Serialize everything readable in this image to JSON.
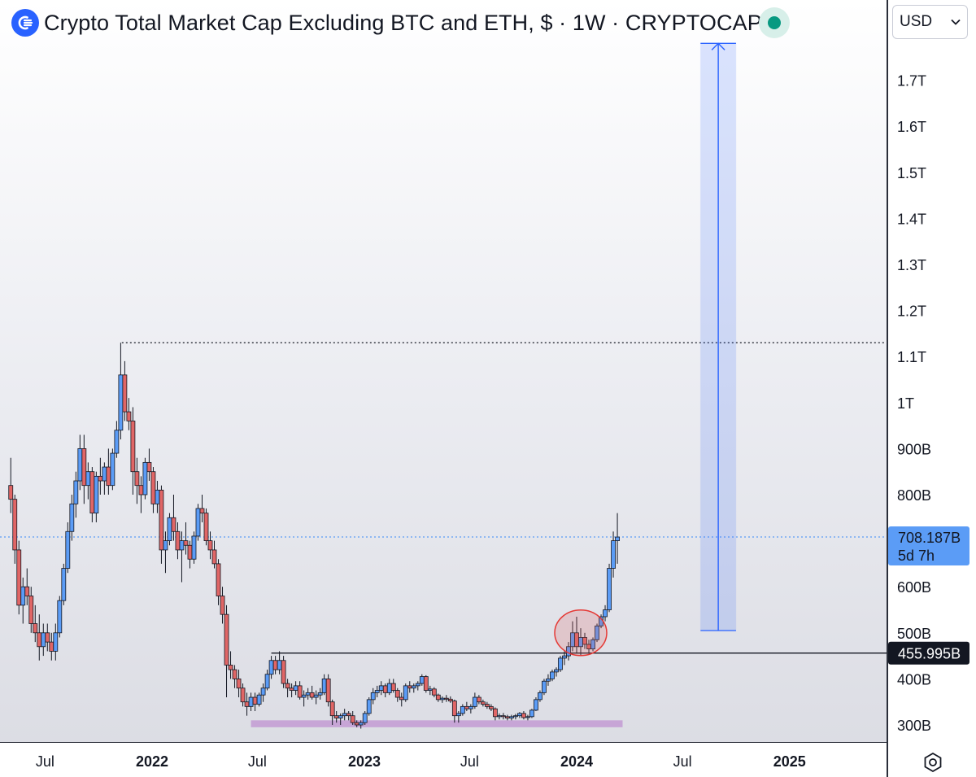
{
  "header": {
    "title": "Crypto Total Market Cap Excluding BTC and ETH, $ · 1W · CRYPTOCAP",
    "logo_icon": "crypto-index-logo-icon",
    "status_icon": "market-status-dot-icon",
    "status_color": "#089981"
  },
  "currency": {
    "selected": "USD",
    "icon": "chevron-down-icon"
  },
  "price_axis": {
    "ticks": [
      "1.7T",
      "1.6T",
      "1.5T",
      "1.4T",
      "1.3T",
      "1.2T",
      "1.1T",
      "1T",
      "900B",
      "800B",
      "600B",
      "500B",
      "400B",
      "300B"
    ],
    "last_price_label": "708.187B",
    "countdown_label": "5d 7h",
    "last_price_color": "#5b9cf6",
    "level_label": "455.995B"
  },
  "time_axis": {
    "ticks": [
      "Jul",
      "2022",
      "Jul",
      "2023",
      "Jul",
      "2024",
      "Jul",
      "2025"
    ],
    "bold_ticks": [
      "2022",
      "2023",
      "2024",
      "2025"
    ]
  },
  "settings_icon": "chart-settings-icon",
  "colors": {
    "bull": "#5b9cf6",
    "bear": "#e06666",
    "candle_border": "#131722",
    "support_zone": "#c39bd3",
    "target_box": "#2962ff"
  },
  "chart_data": {
    "type": "candlestick",
    "title": "Crypto Total Market Cap Excluding BTC and ETH, $ · 1W · CRYPTOCAP",
    "interval": "1W",
    "x_range": [
      "2021-05-01",
      "2025-05-01"
    ],
    "ylim": [
      280,
      1800
    ],
    "y_unit": "B USD",
    "grid": false,
    "all_time_high": 1130,
    "last_price": 708.187,
    "resistance_level": 455.995,
    "support_zone": [
      295,
      310
    ],
    "highlight_circle": {
      "date": "2024-01-08",
      "value": 500
    },
    "target_projection": {
      "date_start": "2024-08-01",
      "date_end": "2024-10-01",
      "from": 505,
      "to": 1780
    },
    "series": [
      {
        "ohlc": [
          [
            "2021-05-03",
            820,
            880,
            760,
            790
          ],
          [
            "2021-05-10",
            790,
            800,
            650,
            680
          ],
          [
            "2021-05-17",
            680,
            700,
            540,
            560
          ],
          [
            "2021-05-24",
            560,
            620,
            520,
            600
          ],
          [
            "2021-05-31",
            600,
            640,
            560,
            580
          ],
          [
            "2021-06-07",
            580,
            600,
            500,
            520
          ],
          [
            "2021-06-14",
            520,
            560,
            480,
            500
          ],
          [
            "2021-06-21",
            500,
            540,
            440,
            470
          ],
          [
            "2021-06-28",
            470,
            520,
            450,
            500
          ],
          [
            "2021-07-05",
            500,
            520,
            460,
            480
          ],
          [
            "2021-07-12",
            480,
            500,
            440,
            460
          ],
          [
            "2021-07-19",
            460,
            520,
            440,
            500
          ],
          [
            "2021-07-26",
            500,
            580,
            490,
            570
          ],
          [
            "2021-08-02",
            570,
            650,
            560,
            640
          ],
          [
            "2021-08-09",
            640,
            740,
            630,
            720
          ],
          [
            "2021-08-16",
            720,
            800,
            700,
            780
          ],
          [
            "2021-08-23",
            780,
            850,
            750,
            830
          ],
          [
            "2021-08-30",
            830,
            930,
            810,
            900
          ],
          [
            "2021-09-06",
            900,
            930,
            780,
            820
          ],
          [
            "2021-09-13",
            820,
            870,
            790,
            850
          ],
          [
            "2021-09-20",
            850,
            860,
            740,
            760
          ],
          [
            "2021-09-27",
            760,
            850,
            740,
            840
          ],
          [
            "2021-10-04",
            840,
            880,
            800,
            830
          ],
          [
            "2021-10-11",
            830,
            870,
            800,
            860
          ],
          [
            "2021-10-18",
            860,
            900,
            800,
            820
          ],
          [
            "2021-10-25",
            820,
            900,
            810,
            890
          ],
          [
            "2021-11-01",
            890,
            960,
            880,
            940
          ],
          [
            "2021-11-08",
            940,
            1130,
            920,
            1060
          ],
          [
            "2021-11-15",
            1060,
            1090,
            960,
            980
          ],
          [
            "2021-11-22",
            980,
            1010,
            940,
            960
          ],
          [
            "2021-11-29",
            960,
            990,
            800,
            850
          ],
          [
            "2021-12-06",
            850,
            880,
            780,
            820
          ],
          [
            "2021-12-13",
            820,
            840,
            760,
            800
          ],
          [
            "2021-12-20",
            800,
            880,
            790,
            870
          ],
          [
            "2021-12-27",
            870,
            900,
            830,
            850
          ],
          [
            "2022-01-03",
            850,
            860,
            760,
            780
          ],
          [
            "2022-01-10",
            780,
            830,
            760,
            810
          ],
          [
            "2022-01-17",
            810,
            820,
            650,
            680
          ],
          [
            "2022-01-24",
            680,
            720,
            630,
            700
          ],
          [
            "2022-01-31",
            700,
            760,
            690,
            750
          ],
          [
            "2022-02-07",
            750,
            800,
            700,
            720
          ],
          [
            "2022-02-14",
            720,
            740,
            660,
            680
          ],
          [
            "2022-02-21",
            680,
            720,
            610,
            700
          ],
          [
            "2022-02-28",
            700,
            740,
            670,
            690
          ],
          [
            "2022-03-07",
            690,
            700,
            640,
            660
          ],
          [
            "2022-03-14",
            660,
            720,
            650,
            710
          ],
          [
            "2022-03-21",
            710,
            780,
            700,
            770
          ],
          [
            "2022-03-28",
            770,
            800,
            740,
            760
          ],
          [
            "2022-04-04",
            760,
            770,
            690,
            700
          ],
          [
            "2022-04-11",
            700,
            720,
            660,
            680
          ],
          [
            "2022-04-18",
            680,
            700,
            640,
            650
          ],
          [
            "2022-04-25",
            650,
            660,
            560,
            580
          ],
          [
            "2022-05-02",
            580,
            600,
            520,
            540
          ],
          [
            "2022-05-09",
            540,
            560,
            360,
            430
          ],
          [
            "2022-05-16",
            430,
            460,
            400,
            420
          ],
          [
            "2022-05-23",
            420,
            430,
            380,
            400
          ],
          [
            "2022-05-30",
            400,
            420,
            360,
            380
          ],
          [
            "2022-06-06",
            380,
            390,
            340,
            350
          ],
          [
            "2022-06-13",
            350,
            370,
            320,
            340
          ],
          [
            "2022-06-20",
            340,
            370,
            330,
            360
          ],
          [
            "2022-06-27",
            360,
            370,
            330,
            345
          ],
          [
            "2022-07-04",
            345,
            370,
            340,
            365
          ],
          [
            "2022-07-11",
            365,
            390,
            350,
            380
          ],
          [
            "2022-07-18",
            380,
            420,
            375,
            410
          ],
          [
            "2022-07-25",
            410,
            450,
            400,
            440
          ],
          [
            "2022-08-01",
            440,
            450,
            410,
            420
          ],
          [
            "2022-08-08",
            420,
            460,
            410,
            440
          ],
          [
            "2022-08-15",
            440,
            450,
            380,
            390
          ],
          [
            "2022-08-22",
            390,
            400,
            360,
            380
          ],
          [
            "2022-08-29",
            380,
            390,
            360,
            375
          ],
          [
            "2022-09-05",
            375,
            395,
            365,
            385
          ],
          [
            "2022-09-12",
            385,
            395,
            355,
            360
          ],
          [
            "2022-09-19",
            360,
            375,
            340,
            365
          ],
          [
            "2022-09-26",
            365,
            380,
            355,
            370
          ],
          [
            "2022-10-03",
            370,
            385,
            355,
            360
          ],
          [
            "2022-10-10",
            360,
            375,
            345,
            365
          ],
          [
            "2022-10-17",
            365,
            380,
            355,
            370
          ],
          [
            "2022-10-24",
            370,
            410,
            365,
            400
          ],
          [
            "2022-10-31",
            400,
            410,
            340,
            350
          ],
          [
            "2022-11-07",
            350,
            355,
            300,
            320
          ],
          [
            "2022-11-14",
            320,
            330,
            305,
            315
          ],
          [
            "2022-11-21",
            315,
            325,
            300,
            320
          ],
          [
            "2022-11-28",
            320,
            335,
            310,
            325
          ],
          [
            "2022-12-05",
            325,
            330,
            310,
            320
          ],
          [
            "2022-12-12",
            320,
            330,
            300,
            305
          ],
          [
            "2022-12-19",
            305,
            310,
            295,
            300
          ],
          [
            "2022-12-26",
            300,
            310,
            292,
            305
          ],
          [
            "2023-01-02",
            305,
            330,
            300,
            325
          ],
          [
            "2023-01-09",
            325,
            360,
            320,
            355
          ],
          [
            "2023-01-16",
            355,
            380,
            345,
            370
          ],
          [
            "2023-01-23",
            370,
            385,
            360,
            375
          ],
          [
            "2023-01-30",
            375,
            395,
            365,
            385
          ],
          [
            "2023-02-06",
            385,
            390,
            360,
            370
          ],
          [
            "2023-02-13",
            370,
            400,
            365,
            390
          ],
          [
            "2023-02-20",
            390,
            400,
            370,
            375
          ],
          [
            "2023-02-27",
            375,
            380,
            350,
            360
          ],
          [
            "2023-03-06",
            360,
            370,
            340,
            355
          ],
          [
            "2023-03-13",
            355,
            390,
            350,
            385
          ],
          [
            "2023-03-20",
            385,
            395,
            370,
            380
          ],
          [
            "2023-03-27",
            380,
            390,
            370,
            385
          ],
          [
            "2023-04-03",
            385,
            395,
            375,
            390
          ],
          [
            "2023-04-10",
            390,
            410,
            385,
            405
          ],
          [
            "2023-04-17",
            405,
            408,
            370,
            375
          ],
          [
            "2023-04-24",
            375,
            385,
            365,
            378
          ],
          [
            "2023-05-01",
            378,
            382,
            360,
            365
          ],
          [
            "2023-05-08",
            365,
            368,
            350,
            355
          ],
          [
            "2023-05-15",
            355,
            362,
            348,
            358
          ],
          [
            "2023-05-22",
            358,
            365,
            350,
            356
          ],
          [
            "2023-05-29",
            356,
            362,
            348,
            352
          ],
          [
            "2023-06-05",
            352,
            355,
            305,
            320
          ],
          [
            "2023-06-12",
            320,
            330,
            305,
            325
          ],
          [
            "2023-06-19",
            325,
            345,
            320,
            340
          ],
          [
            "2023-06-26",
            340,
            350,
            330,
            335
          ],
          [
            "2023-07-03",
            335,
            345,
            325,
            340
          ],
          [
            "2023-07-10",
            340,
            370,
            335,
            360
          ],
          [
            "2023-07-17",
            360,
            365,
            345,
            350
          ],
          [
            "2023-07-24",
            350,
            355,
            340,
            345
          ],
          [
            "2023-07-31",
            345,
            350,
            335,
            340
          ],
          [
            "2023-08-07",
            340,
            345,
            330,
            335
          ],
          [
            "2023-08-14",
            335,
            338,
            310,
            318
          ],
          [
            "2023-08-21",
            318,
            325,
            312,
            320
          ],
          [
            "2023-08-28",
            320,
            326,
            312,
            318
          ],
          [
            "2023-09-04",
            318,
            322,
            310,
            315
          ],
          [
            "2023-09-11",
            315,
            322,
            310,
            318
          ],
          [
            "2023-09-18",
            318,
            324,
            312,
            320
          ],
          [
            "2023-09-25",
            320,
            328,
            315,
            325
          ],
          [
            "2023-10-02",
            325,
            330,
            312,
            316
          ],
          [
            "2023-10-09",
            316,
            322,
            310,
            318
          ],
          [
            "2023-10-16",
            318,
            335,
            315,
            332
          ],
          [
            "2023-10-23",
            332,
            360,
            330,
            355
          ],
          [
            "2023-10-30",
            355,
            375,
            350,
            370
          ],
          [
            "2023-11-06",
            370,
            400,
            365,
            395
          ],
          [
            "2023-11-13",
            395,
            410,
            385,
            400
          ],
          [
            "2023-11-20",
            400,
            420,
            395,
            415
          ],
          [
            "2023-11-27",
            415,
            425,
            405,
            420
          ],
          [
            "2023-12-04",
            420,
            450,
            415,
            445
          ],
          [
            "2023-12-11",
            445,
            460,
            430,
            450
          ],
          [
            "2023-12-18",
            450,
            480,
            440,
            470
          ],
          [
            "2023-12-25",
            470,
            525,
            460,
            500
          ],
          [
            "2024-01-01",
            500,
            535,
            455,
            470
          ],
          [
            "2024-01-08",
            470,
            510,
            450,
            490
          ],
          [
            "2024-01-15",
            490,
            500,
            465,
            475
          ],
          [
            "2024-01-22",
            475,
            485,
            455,
            465
          ],
          [
            "2024-01-29",
            465,
            490,
            460,
            485
          ],
          [
            "2024-02-05",
            485,
            520,
            480,
            515
          ],
          [
            "2024-02-12",
            515,
            540,
            510,
            535
          ],
          [
            "2024-02-19",
            535,
            560,
            525,
            550
          ],
          [
            "2024-02-26",
            550,
            650,
            545,
            640
          ],
          [
            "2024-03-04",
            640,
            720,
            620,
            700
          ],
          [
            "2024-03-11",
            700,
            760,
            650,
            708
          ]
        ]
      }
    ]
  }
}
